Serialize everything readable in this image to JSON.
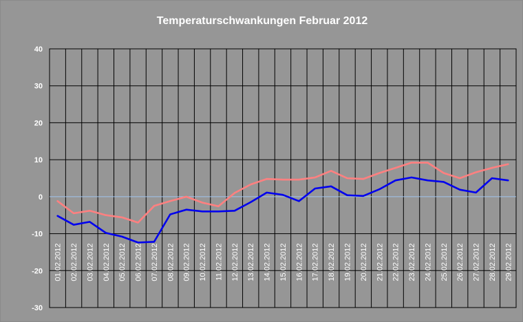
{
  "chart_data": {
    "type": "line",
    "title": "Temperaturschwankungen Februar 2012",
    "xlabel": "",
    "ylabel": "",
    "ylim": [
      -30,
      40
    ],
    "yticks": [
      40,
      30,
      20,
      10,
      0,
      -10,
      -20,
      -30
    ],
    "grid": true,
    "legend": "none",
    "categories": [
      "01.02.2012",
      "02.02.2012",
      "03.02.2012",
      "04.02.2012",
      "05.02.2012",
      "06.02.2012",
      "07.02.2012",
      "08.02.2012",
      "09.02.2012",
      "10.02.2012",
      "11.02.2012",
      "12.02.2012",
      "13.02.2012",
      "14.02.2012",
      "15.02.2012",
      "16.02.2012",
      "17.02.2012",
      "18.02.2012",
      "19.02.2012",
      "20.02.2012",
      "21.02.2012",
      "22.02.2012",
      "23.02.2012",
      "24.02.2012",
      "25.02.2012",
      "26.02.2012",
      "27.02.2012",
      "28.02.2012",
      "29.02.2012"
    ],
    "series": [
      {
        "color": "#ff8080",
        "values": [
          -1.2,
          -4.5,
          -3.8,
          -5.0,
          -5.6,
          -7.0,
          -2.5,
          -1.2,
          0.0,
          -1.6,
          -2.6,
          1.0,
          3.3,
          4.8,
          4.6,
          4.6,
          5.2,
          7.0,
          5.0,
          4.8,
          6.4,
          7.8,
          9.2,
          9.2,
          6.4,
          5.0,
          6.6,
          7.8,
          8.8
        ]
      },
      {
        "color": "#0000ee",
        "values": [
          -5.2,
          -7.6,
          -6.8,
          -9.8,
          -10.8,
          -12.4,
          -12.2,
          -4.8,
          -3.5,
          -4.0,
          -4.0,
          -3.8,
          -1.5,
          1.1,
          0.5,
          -1.2,
          2.2,
          2.8,
          0.4,
          0.2,
          2.0,
          4.4,
          5.2,
          4.4,
          4.0,
          1.9,
          1.1,
          5.0,
          4.4
        ]
      }
    ]
  }
}
